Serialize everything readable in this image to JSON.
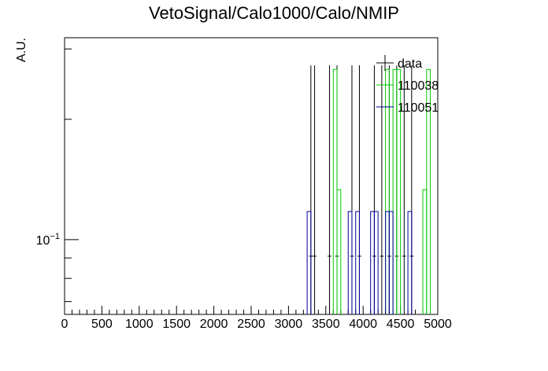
{
  "chart_data": {
    "type": "histogram",
    "title": "VetoSignal/Calo1000/Calo/NMIP",
    "xlabel": "",
    "ylabel": "A.U.",
    "xlim": [
      0,
      5000
    ],
    "ylim": [
      0.065,
      0.32
    ],
    "yscale": "log",
    "bin_width": 50,
    "xticks": [
      0,
      500,
      1000,
      1500,
      2000,
      2500,
      3000,
      3500,
      4000,
      4500,
      5000
    ],
    "ytick_labels": [
      {
        "value": 0.1,
        "base": "10",
        "exp": "−1"
      }
    ],
    "legend_position": "top-right",
    "series": [
      {
        "name": "data",
        "color": "#000000",
        "style": "points-with-errors",
        "y": 0.0909,
        "err_up": 0.182,
        "err_down": 0.0,
        "x": [
          3300,
          3350,
          3550,
          3650,
          3850,
          3950,
          4150,
          4250,
          4350,
          4450,
          4550,
          4650
        ]
      },
      {
        "name": "110038",
        "color": "#00cc00",
        "style": "step",
        "bins": [
          [
            3600,
            3650,
            0.2667
          ],
          [
            3650,
            3700,
            0.1333
          ],
          [
            4300,
            4350,
            0.2667
          ],
          [
            4400,
            4450,
            0.2667
          ],
          [
            4450,
            4500,
            0.2667
          ],
          [
            4800,
            4850,
            0.1333
          ],
          [
            4850,
            4900,
            0.2667
          ]
        ]
      },
      {
        "name": "110051",
        "color": "#000099",
        "style": "step",
        "bins": [
          [
            3250,
            3300,
            0.1176
          ],
          [
            3800,
            3850,
            0.1176
          ],
          [
            3900,
            3950,
            0.1176
          ],
          [
            4100,
            4150,
            0.1176
          ],
          [
            4150,
            4200,
            0.1176
          ],
          [
            4300,
            4350,
            0.1176
          ],
          [
            4350,
            4400,
            0.1176
          ],
          [
            4600,
            4650,
            0.1176
          ]
        ]
      }
    ]
  }
}
